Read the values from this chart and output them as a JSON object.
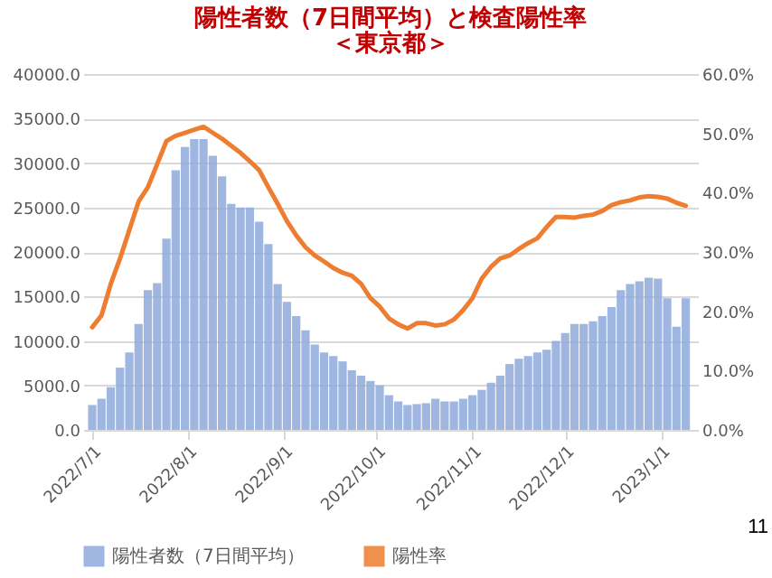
{
  "chart_data": {
    "type": "bar",
    "title": "陽性者数（7日間平均）と検査陽性率",
    "subtitle": "＜東京都＞",
    "x": [
      "2022-07-01",
      "2022-07-04",
      "2022-07-07",
      "2022-07-10",
      "2022-07-13",
      "2022-07-16",
      "2022-07-19",
      "2022-07-22",
      "2022-07-25",
      "2022-07-28",
      "2022-07-31",
      "2022-08-03",
      "2022-08-06",
      "2022-08-09",
      "2022-08-12",
      "2022-08-15",
      "2022-08-18",
      "2022-08-21",
      "2022-08-24",
      "2022-08-27",
      "2022-08-30",
      "2022-09-02",
      "2022-09-05",
      "2022-09-08",
      "2022-09-11",
      "2022-09-14",
      "2022-09-17",
      "2022-09-20",
      "2022-09-23",
      "2022-09-26",
      "2022-09-29",
      "2022-10-02",
      "2022-10-05",
      "2022-10-08",
      "2022-10-11",
      "2022-10-14",
      "2022-10-17",
      "2022-10-20",
      "2022-10-23",
      "2022-10-26",
      "2022-10-29",
      "2022-11-01",
      "2022-11-04",
      "2022-11-07",
      "2022-11-10",
      "2022-11-13",
      "2022-11-16",
      "2022-11-19",
      "2022-11-22",
      "2022-11-25",
      "2022-11-28",
      "2022-12-01",
      "2022-12-04",
      "2022-12-07",
      "2022-12-10",
      "2022-12-13",
      "2022-12-16",
      "2022-12-19",
      "2022-12-22",
      "2022-12-25",
      "2022-12-28",
      "2022-12-31",
      "2023-01-03",
      "2023-01-06",
      "2023-01-09"
    ],
    "series": [
      {
        "name": "陽性者数（7日間平均）",
        "color": "#8eaadb",
        "values": [
          2800,
          3500,
          4800,
          7000,
          8700,
          11900,
          15700,
          16500,
          21500,
          29200,
          31800,
          32700,
          32700,
          30800,
          28500,
          25400,
          25000,
          25000,
          23400,
          20900,
          16400,
          14400,
          12800,
          11200,
          9600,
          8700,
          8300,
          7700,
          6700,
          6100,
          5500,
          5000,
          3900,
          3200,
          2800,
          2900,
          3000,
          3500,
          3200,
          3200,
          3500,
          3900,
          4500,
          5300,
          6100,
          7400,
          8000,
          8300,
          8700,
          9000,
          10000,
          10900,
          11900,
          11900,
          12200,
          12800,
          13800,
          15700,
          16400,
          16700,
          17100,
          17000,
          14800,
          11600,
          14800
        ]
      },
      {
        "name": "陽性率",
        "type": "line",
        "axis": "y2",
        "color": "#ed7d31",
        "values": [
          17.3,
          19.3,
          24.6,
          28.9,
          33.7,
          38.5,
          40.9,
          44.8,
          48.7,
          49.6,
          50.1,
          50.6,
          51.1,
          50.1,
          49.1,
          47.9,
          46.7,
          45.3,
          43.8,
          40.9,
          38.1,
          35.2,
          32.8,
          30.8,
          29.4,
          28.4,
          27.3,
          26.5,
          26.0,
          24.6,
          22.2,
          20.8,
          18.8,
          17.8,
          17.1,
          18.0,
          18.0,
          17.6,
          17.8,
          18.6,
          20.2,
          22.2,
          25.5,
          27.5,
          28.9,
          29.4,
          30.5,
          31.5,
          32.3,
          34.2,
          35.9,
          35.9,
          35.8,
          36.1,
          36.3,
          36.9,
          37.9,
          38.4,
          38.7,
          39.2,
          39.4,
          39.3,
          39.0,
          38.3,
          37.8
        ]
      }
    ],
    "xlim": [
      "2022-07-01",
      "2023-01-10"
    ],
    "xticks": [
      {
        "value": "2022-07-01",
        "label": "2022/7/1"
      },
      {
        "value": "2022-08-01",
        "label": "2022/8/1"
      },
      {
        "value": "2022-09-01",
        "label": "2022/9/1"
      },
      {
        "value": "2022-10-01",
        "label": "2022/10/1"
      },
      {
        "value": "2022-11-01",
        "label": "2022/11/1"
      },
      {
        "value": "2022-12-01",
        "label": "2022/12/1"
      },
      {
        "value": "2023-01-01",
        "label": "2023/1/1"
      }
    ],
    "ylim": [
      0,
      40000
    ],
    "yticks": [
      {
        "value": 0,
        "label": "0.0"
      },
      {
        "value": 5000,
        "label": "5000.0"
      },
      {
        "value": 10000,
        "label": "10000.0"
      },
      {
        "value": 15000,
        "label": "15000.0"
      },
      {
        "value": 20000,
        "label": "20000.0"
      },
      {
        "value": 25000,
        "label": "25000.0"
      },
      {
        "value": 30000,
        "label": "30000.0"
      },
      {
        "value": 35000,
        "label": "35000.0"
      },
      {
        "value": 40000,
        "label": "40000.0"
      }
    ],
    "y2lim": [
      0,
      60
    ],
    "y2ticks": [
      {
        "value": 0,
        "label": "0.0%"
      },
      {
        "value": 10,
        "label": "10.0%"
      },
      {
        "value": 20,
        "label": "20.0%"
      },
      {
        "value": 30,
        "label": "30.0%"
      },
      {
        "value": 40,
        "label": "40.0%"
      },
      {
        "value": 50,
        "label": "50.0%"
      },
      {
        "value": 60,
        "label": "60.0%"
      }
    ],
    "grid": "y",
    "legend": "bottom",
    "line_style": "solid",
    "marker": "none",
    "annotations": [
      "11"
    ]
  }
}
